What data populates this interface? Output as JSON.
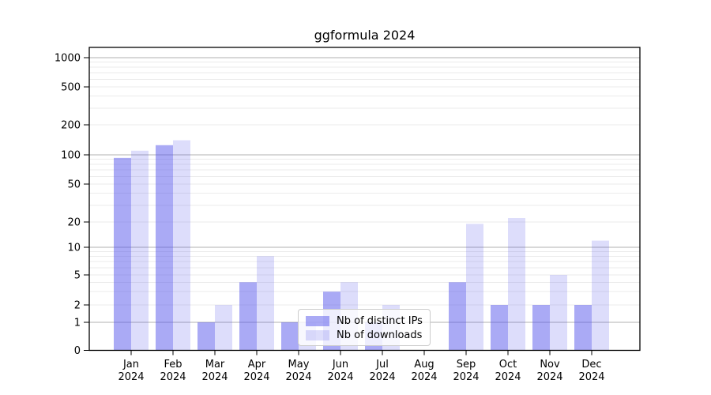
{
  "chart_data": {
    "type": "bar",
    "title": "ggformula 2024",
    "categories": [
      "Jan 2024",
      "Feb 2024",
      "Mar 2024",
      "Apr 2024",
      "May 2024",
      "Jun 2024",
      "Jul 2024",
      "Aug 2024",
      "Sep 2024",
      "Oct 2024",
      "Nov 2024",
      "Dec 2024"
    ],
    "series": [
      {
        "name": "Nb of distinct IPs",
        "color": "rgba(85,85,235,0.50)",
        "values": [
          93,
          125,
          1,
          4,
          1,
          3,
          1,
          0,
          4,
          2,
          2,
          2
        ]
      },
      {
        "name": "Nb of downloads",
        "color": "rgba(85,85,235,0.20)",
        "values": [
          110,
          140,
          2,
          8,
          1,
          4,
          2,
          0,
          19,
          22,
          5,
          12
        ]
      }
    ],
    "y_axis": {
      "scale": "symlog",
      "ticks": [
        0,
        1,
        2,
        5,
        10,
        20,
        50,
        100,
        200,
        500,
        1000
      ]
    },
    "x_axis": {
      "tick_year_line": "2024"
    },
    "grid": {
      "major_color": "#b0b0b0",
      "minor_color": "#ebebeb"
    },
    "axis_color": "#000000",
    "legend": {
      "position": "bottom-center"
    }
  }
}
